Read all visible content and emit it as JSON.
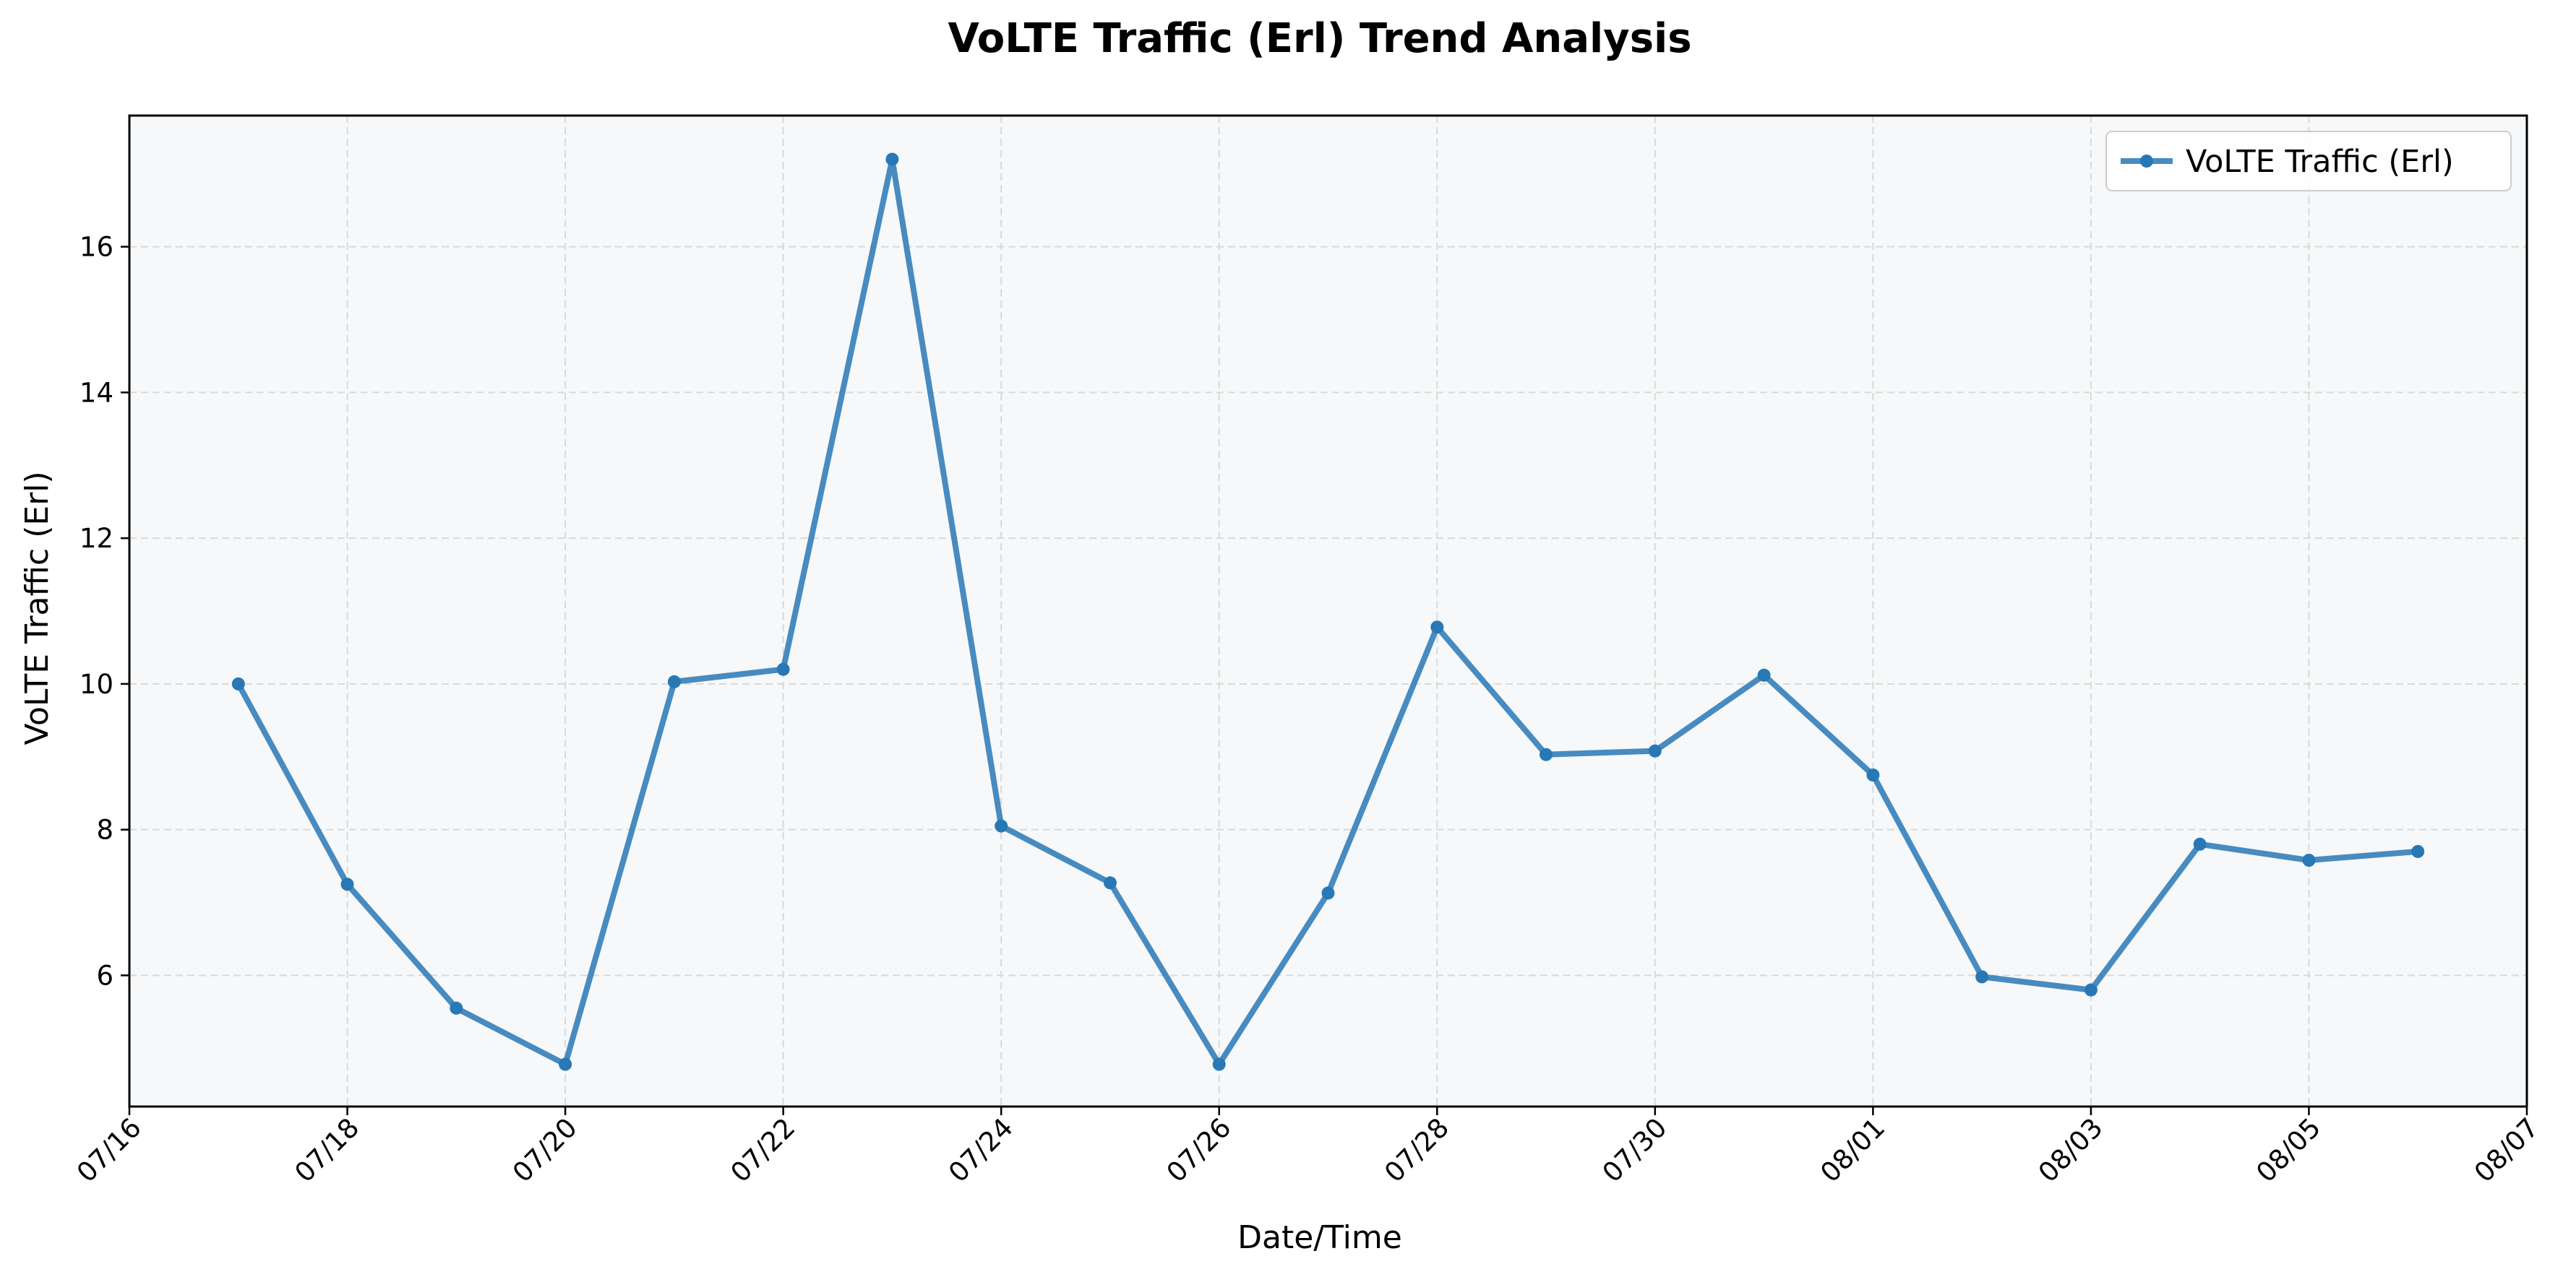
{
  "chart_data": {
    "type": "line",
    "title": "VoLTE Traffic (Erl) Trend Analysis",
    "xlabel": "Date/Time",
    "ylabel": "VoLTE Traffic (Erl)",
    "x_tick_labels": [
      "07/16",
      "07/18",
      "07/20",
      "07/22",
      "07/24",
      "07/26",
      "07/28",
      "07/30",
      "08/01",
      "08/03",
      "08/05",
      "08/07"
    ],
    "y_ticks": [
      6,
      8,
      10,
      12,
      14,
      16
    ],
    "xlim": [
      "07/16",
      "08/07"
    ],
    "ylim": [
      4.2,
      17.8
    ],
    "grid": true,
    "legend_position": "top-right",
    "colors": {
      "line": "#2878b5",
      "plot_background": "#f6f8fa",
      "grid": "#d9d9d9"
    },
    "series": [
      {
        "name": "VoLTE Traffic (Erl)",
        "x": [
          "07/17",
          "07/18",
          "07/19",
          "07/20",
          "07/21",
          "07/22",
          "07/23",
          "07/24",
          "07/25",
          "07/26",
          "07/27",
          "07/28",
          "07/29",
          "07/30",
          "07/31",
          "08/01",
          "08/02",
          "08/03",
          "08/04",
          "08/05",
          "08/06"
        ],
        "values": [
          10.0,
          7.25,
          5.55,
          4.78,
          10.03,
          10.2,
          17.2,
          8.05,
          7.27,
          4.78,
          7.13,
          10.78,
          9.03,
          9.08,
          10.12,
          8.75,
          5.98,
          5.8,
          7.8,
          7.58,
          7.7
        ]
      }
    ]
  }
}
